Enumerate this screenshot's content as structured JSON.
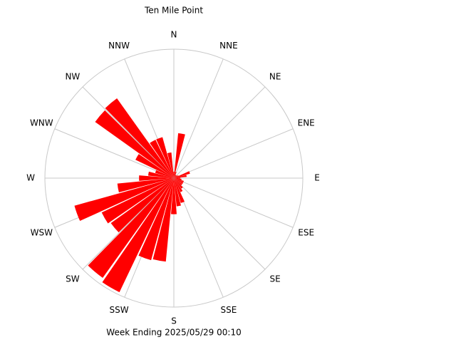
{
  "chart_data": {
    "type": "windrose",
    "title": "Ten Mile Point",
    "subtitle": "Week Ending 2025/05/29 00:10",
    "compass_labels": [
      "N",
      "NNE",
      "NE",
      "ENE",
      "E",
      "ESE",
      "SE",
      "SSE",
      "S",
      "SSW",
      "SW",
      "WSW",
      "W",
      "WNW",
      "NW",
      "NNW"
    ],
    "x": [
      0,
      10,
      20,
      30,
      40,
      50,
      60,
      70,
      80,
      90,
      100,
      110,
      120,
      130,
      140,
      150,
      160,
      170,
      180,
      190,
      200,
      210,
      220,
      230,
      240,
      250,
      260,
      270,
      280,
      290,
      300,
      310,
      320,
      330,
      340,
      350
    ],
    "values": [
      5,
      35,
      5,
      3,
      3,
      3,
      4,
      13,
      10,
      5,
      6,
      8,
      8,
      8,
      10,
      12,
      20,
      22,
      28,
      65,
      66,
      98,
      95,
      60,
      62,
      80,
      44,
      27,
      20,
      15,
      33,
      75,
      76,
      33,
      33,
      20
    ],
    "color": "#ff0000",
    "rlim": [
      0,
      100
    ]
  }
}
